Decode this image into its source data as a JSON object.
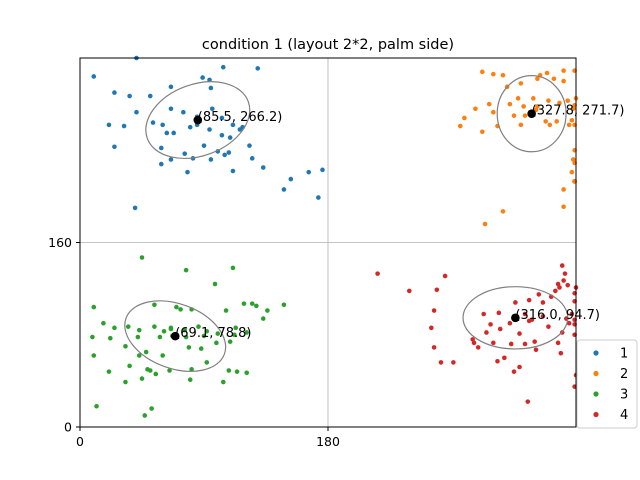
{
  "chart_data": {
    "type": "scatter",
    "title": "condition 1 (layout 2*2, palm side)",
    "xlabel": "",
    "ylabel": "",
    "xlim": [
      0,
      360
    ],
    "ylim": [
      0,
      320
    ],
    "xticks": [
      0,
      180
    ],
    "yticks": [
      0,
      160
    ],
    "grid_lines": {
      "x": [
        180
      ],
      "y": [
        160
      ]
    },
    "legend_position": "bottom-right",
    "series": [
      {
        "name": "1",
        "color": "#1f77b4",
        "points": [
          [
            10,
            304
          ],
          [
            25,
            290
          ],
          [
            36,
            287
          ],
          [
            51,
            287
          ],
          [
            66,
            295
          ],
          [
            89,
            303
          ],
          [
            94,
            301
          ],
          [
            104,
            312
          ],
          [
            129,
            311
          ],
          [
            95,
            294
          ],
          [
            41,
            273
          ],
          [
            21,
            262
          ],
          [
            32,
            261
          ],
          [
            25,
            243
          ],
          [
            59,
            242
          ],
          [
            66,
            276
          ],
          [
            75,
            273
          ],
          [
            60,
            262
          ],
          [
            85,
            269
          ],
          [
            96,
            276
          ],
          [
            103,
            268
          ],
          [
            111,
            262
          ],
          [
            118,
            260
          ],
          [
            103,
            253
          ],
          [
            68,
            255
          ],
          [
            53,
            264
          ],
          [
            63,
            255
          ],
          [
            80,
            260
          ],
          [
            85,
            262
          ],
          [
            94,
            258
          ],
          [
            109,
            251
          ],
          [
            116,
            258
          ],
          [
            90,
            244
          ],
          [
            76,
            237
          ],
          [
            100,
            239
          ],
          [
            108,
            238
          ],
          [
            123,
            244
          ],
          [
            59,
            228
          ],
          [
            66,
            232
          ],
          [
            82,
            233
          ],
          [
            95,
            232
          ],
          [
            105,
            236
          ],
          [
            125,
            233
          ],
          [
            133,
            225
          ],
          [
            153,
            215
          ],
          [
            166,
            221
          ],
          [
            176,
            223
          ],
          [
            148,
            206
          ],
          [
            173,
            199
          ],
          [
            111,
            222
          ],
          [
            78,
            221
          ],
          [
            40,
            190
          ],
          [
            41,
            320
          ]
        ]
      },
      {
        "name": "2",
        "color": "#ff7f0e",
        "points": [
          [
            292,
            308
          ],
          [
            300,
            306
          ],
          [
            307,
            305
          ],
          [
            320,
            298
          ],
          [
            334,
            305
          ],
          [
            339,
            307
          ],
          [
            351,
            309
          ],
          [
            359,
            309
          ],
          [
            310,
            295
          ],
          [
            332,
            302
          ],
          [
            344,
            302
          ],
          [
            351,
            300
          ],
          [
            329,
            285
          ],
          [
            340,
            283
          ],
          [
            348,
            281
          ],
          [
            354,
            283
          ],
          [
            359,
            279
          ],
          [
            312,
            280
          ],
          [
            318,
            285
          ],
          [
            322,
            278
          ],
          [
            332,
            278
          ],
          [
            358,
            276
          ],
          [
            297,
            280
          ],
          [
            287,
            276
          ],
          [
            279,
            268
          ],
          [
            300,
            273
          ],
          [
            315,
            270
          ],
          [
            320,
            262
          ],
          [
            341,
            262
          ],
          [
            355,
            262
          ],
          [
            359,
            262
          ],
          [
            276,
            261
          ],
          [
            292,
            256
          ],
          [
            303,
            261
          ],
          [
            323,
            270
          ],
          [
            331,
            275
          ],
          [
            338,
            265
          ],
          [
            346,
            265
          ],
          [
            359,
            240
          ],
          [
            357,
            221
          ],
          [
            359,
            229
          ],
          [
            359,
            213
          ],
          [
            359,
            213
          ],
          [
            359,
            213
          ],
          [
            351,
            206
          ],
          [
            365,
            285
          ],
          [
            357,
            266
          ],
          [
            358,
            232
          ],
          [
            359,
            213
          ],
          [
            359,
            213
          ],
          [
            359,
            213
          ],
          [
            307,
            187
          ],
          [
            351,
            191
          ],
          [
            294,
            176
          ]
        ]
      },
      {
        "name": "3",
        "color": "#2ca02c",
        "points": [
          [
            45,
            147
          ],
          [
            77,
            136
          ],
          [
            111,
            138
          ],
          [
            98,
            124
          ],
          [
            54,
            106
          ],
          [
            70,
            104
          ],
          [
            73,
            102
          ],
          [
            81,
            102
          ],
          [
            106,
            101
          ],
          [
            119,
            107
          ],
          [
            125,
            107
          ],
          [
            128,
            105
          ],
          [
            148,
            106
          ],
          [
            136,
            101
          ],
          [
            10,
            104
          ],
          [
            17,
            90
          ],
          [
            25,
            86
          ],
          [
            35,
            87
          ],
          [
            43,
            84
          ],
          [
            54,
            87
          ],
          [
            66,
            85
          ],
          [
            76,
            84
          ],
          [
            86,
            87
          ],
          [
            92,
            83
          ],
          [
            100,
            81
          ],
          [
            113,
            86
          ],
          [
            121,
            82
          ],
          [
            133,
            94
          ],
          [
            9,
            78
          ],
          [
            42,
            78
          ],
          [
            58,
            78
          ],
          [
            61,
            83
          ],
          [
            67,
            79
          ],
          [
            77,
            78
          ],
          [
            90,
            79
          ],
          [
            112,
            80
          ],
          [
            33,
            70
          ],
          [
            48,
            65
          ],
          [
            60,
            62
          ],
          [
            79,
            69
          ],
          [
            88,
            68
          ],
          [
            99,
            73
          ],
          [
            109,
            74
          ],
          [
            43,
            62
          ],
          [
            10,
            62
          ],
          [
            36,
            53
          ],
          [
            51,
            49
          ],
          [
            55,
            46
          ],
          [
            65,
            49
          ],
          [
            81,
            50
          ],
          [
            92,
            56
          ],
          [
            108,
            49
          ],
          [
            114,
            48
          ],
          [
            121,
            47
          ],
          [
            33,
            39
          ],
          [
            45,
            42
          ],
          [
            49,
            50
          ],
          [
            21,
            48
          ],
          [
            80,
            41
          ],
          [
            104,
            39
          ],
          [
            12,
            18
          ],
          [
            52,
            16
          ],
          [
            47,
            10
          ],
          [
            22,
            77
          ],
          [
            66,
            86
          ]
        ]
      },
      {
        "name": "4",
        "color": "#d62728",
        "points": [
          [
            216,
            133
          ],
          [
            239,
            118
          ],
          [
            259,
            119
          ],
          [
            265,
            131
          ],
          [
            257,
            101
          ],
          [
            255,
            86
          ],
          [
            257,
            69
          ],
          [
            262,
            56
          ],
          [
            271,
            56
          ],
          [
            293,
            98
          ],
          [
            304,
            99
          ],
          [
            316,
            108
          ],
          [
            326,
            110
          ],
          [
            333,
            115
          ],
          [
            342,
            113
          ],
          [
            345,
            118
          ],
          [
            348,
            121
          ],
          [
            351,
            127
          ],
          [
            354,
            123
          ],
          [
            359,
            116
          ],
          [
            363,
            121
          ],
          [
            359,
            109
          ],
          [
            357,
            98
          ],
          [
            359,
            93
          ],
          [
            359,
            89
          ],
          [
            353,
            94
          ],
          [
            350,
            82
          ],
          [
            355,
            90
          ],
          [
            359,
            80
          ],
          [
            347,
            73
          ],
          [
            349,
            64
          ],
          [
            298,
            89
          ],
          [
            312,
            90
          ],
          [
            326,
            92
          ],
          [
            336,
            96
          ],
          [
            340,
            87
          ],
          [
            330,
            74
          ],
          [
            319,
            81
          ],
          [
            305,
            85
          ],
          [
            295,
            82
          ],
          [
            286,
            73
          ],
          [
            285,
            76
          ],
          [
            289,
            69
          ],
          [
            313,
            72
          ],
          [
            323,
            72
          ],
          [
            331,
            67
          ],
          [
            308,
            60
          ],
          [
            303,
            57
          ],
          [
            315,
            48
          ],
          [
            319,
            52
          ],
          [
            325,
            22
          ],
          [
            359,
            35
          ],
          [
            363,
            45
          ],
          [
            350,
            140
          ],
          [
            347,
            124
          ],
          [
            352,
            133
          ],
          [
            336,
            108
          ],
          [
            323,
            98
          ],
          [
            328,
            93
          ],
          [
            300,
            73
          ]
        ]
      }
    ],
    "centroids": [
      {
        "series": "1",
        "x": 85.5,
        "y": 266.2,
        "label": "(85.5, 266.2)",
        "ellipse": {
          "rx": 39,
          "ry": 31,
          "angle_deg": -20
        }
      },
      {
        "series": "2",
        "x": 327.8,
        "y": 271.7,
        "label": "(327.8, 271.7)",
        "ellipse": {
          "rx": 25,
          "ry": 33,
          "angle_deg": 0
        }
      },
      {
        "series": "3",
        "x": 69.1,
        "y": 78.8,
        "label": "(69.1, 78.8)",
        "ellipse": {
          "rx": 38,
          "ry": 28,
          "angle_deg": 20
        }
      },
      {
        "series": "4",
        "x": 316.0,
        "y": 94.7,
        "label": "(316.0, 94.7)",
        "ellipse": {
          "rx": 38,
          "ry": 27,
          "angle_deg": 0
        }
      }
    ]
  }
}
